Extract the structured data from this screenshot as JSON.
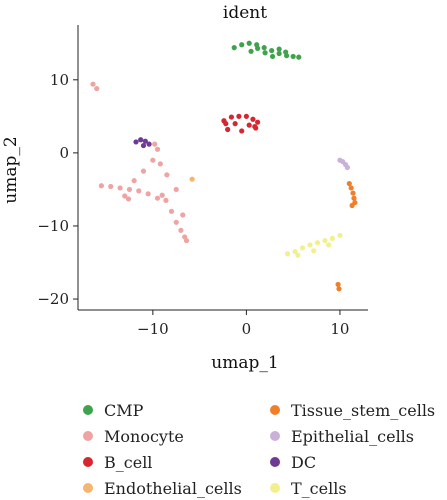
{
  "chart_data": {
    "type": "scatter",
    "title": "ident",
    "xlabel": "umap_1",
    "ylabel": "umap_2",
    "xlim": [
      -18,
      13
    ],
    "ylim": [
      -21.5,
      17.5
    ],
    "xticks": [
      -10,
      0,
      10
    ],
    "yticks": [
      10,
      0,
      -10,
      -20
    ],
    "xtick_labels": [
      "−10",
      "0",
      "10"
    ],
    "ytick_labels": [
      "10",
      "0",
      "−10",
      "−20"
    ],
    "grid": false,
    "legend_position": "bottom",
    "series": [
      {
        "name": "CMP",
        "color": "#3FA34D",
        "x": [
          -1.3,
          -0.5,
          0.3,
          1.1,
          1.9,
          2.7,
          3.5,
          4.3,
          5.0,
          5.6,
          0.5,
          2.0,
          3.5,
          1.2,
          2.8,
          4.2
        ],
        "y": [
          14.4,
          14.8,
          15.0,
          14.8,
          14.4,
          14.0,
          13.6,
          13.3,
          13.2,
          13.1,
          13.9,
          13.7,
          14.2,
          14.3,
          13.2,
          13.8
        ]
      },
      {
        "name": "Monocyte",
        "color": "#EFA3A3",
        "x": [
          -16.4,
          -16.0,
          -15.5,
          -14.5,
          -13.5,
          -12.5,
          -11.5,
          -10.5,
          -9.5,
          -9.0,
          -8.6,
          -8.0,
          -7.5,
          -7.0,
          -6.6,
          -6.4,
          -6.8,
          -7.5,
          -8.5,
          -9.2,
          -9.5,
          -9.8,
          -10.0,
          -11.0,
          -12.0,
          -13.0,
          -12.6
        ],
        "y": [
          9.4,
          8.8,
          -4.5,
          -4.6,
          -4.8,
          -5.0,
          -5.2,
          -5.6,
          -6.2,
          -5.8,
          -6.5,
          -8.0,
          -9.5,
          -10.6,
          -11.5,
          -12.0,
          -8.5,
          -5.0,
          -3.0,
          -1.5,
          0.5,
          1.2,
          -1.0,
          -2.5,
          -3.8,
          -5.9,
          -6.3
        ]
      },
      {
        "name": "B_cell",
        "color": "#D7262F",
        "x": [
          -2.4,
          -1.6,
          -0.8,
          0.0,
          0.7,
          1.2,
          -2.0,
          -0.5,
          1.0,
          -2.2,
          0.9,
          -1.2,
          0.3
        ],
        "y": [
          4.4,
          4.9,
          5.0,
          5.0,
          4.6,
          4.2,
          3.2,
          3.0,
          3.4,
          4.0,
          3.6,
          4.0,
          3.8
        ]
      },
      {
        "name": "Endothelial_cells",
        "color": "#F5B56E",
        "x": [
          -5.8
        ],
        "y": [
          -3.6
        ]
      },
      {
        "name": "Tissue_stem_cells",
        "color": "#F07F2A",
        "x": [
          11.0,
          11.2,
          11.4,
          11.5,
          11.6,
          11.3,
          9.8,
          9.9
        ],
        "y": [
          -4.2,
          -4.8,
          -5.5,
          -6.2,
          -6.8,
          -7.2,
          -18.0,
          -18.6
        ]
      },
      {
        "name": "Epithelial_cells",
        "color": "#C9B1D8",
        "x": [
          10.0,
          10.3,
          10.6,
          10.8
        ],
        "y": [
          -1.0,
          -1.2,
          -1.6,
          -2.0
        ]
      },
      {
        "name": "DC",
        "color": "#6E3A96",
        "x": [
          -11.8,
          -11.3,
          -10.8,
          -10.4,
          -11.0
        ],
        "y": [
          1.5,
          1.8,
          1.6,
          1.2,
          1.0
        ]
      },
      {
        "name": "T_cells",
        "color": "#F2F08E",
        "x": [
          4.4,
          5.2,
          6.0,
          6.8,
          7.6,
          8.4,
          9.2,
          10.0,
          5.5,
          7.2,
          8.8
        ],
        "y": [
          -13.8,
          -13.5,
          -13.0,
          -12.6,
          -12.3,
          -12.0,
          -11.7,
          -11.3,
          -14.0,
          -13.4,
          -12.6
        ]
      }
    ]
  }
}
